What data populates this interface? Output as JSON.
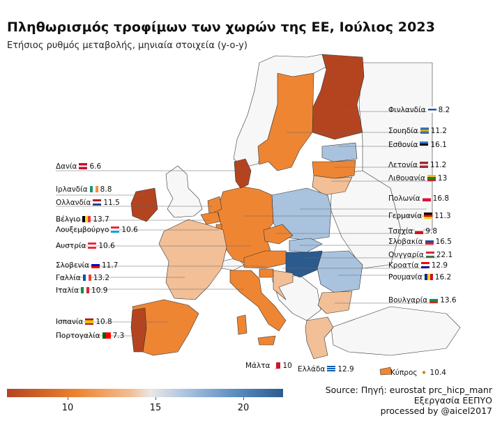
{
  "title": "Πληθωρισμός τροφίμων των χωρών της ΕΕ, Ιούλιος 2023",
  "subtitle": "Ετήσιος ρυθμός μεταβολής, μηνιαία στοιχεία (y-o-y)",
  "colors": {
    "low": "#b4441f",
    "orange": "#ee8533",
    "peach": "#f2bf96",
    "mid": "#e9e7e5",
    "lightblue": "#a9c3de",
    "blue": "#5e8fc2",
    "high": "#2b5b8e",
    "nonEU": "#f7f7f7"
  },
  "countries": [
    {
      "name": "Φινλανδία",
      "flag": "finland-flag",
      "value": "8.2"
    },
    {
      "name": "Σουηδία",
      "flag": "sweden-flag",
      "value": "11.2"
    },
    {
      "name": "Εσθονία",
      "flag": "estonia-flag",
      "value": "16.1"
    },
    {
      "name": "Λετονία",
      "flag": "latvia-flag",
      "value": "11.2"
    },
    {
      "name": "Λιθουανία",
      "flag": "lithuania-flag",
      "value": "13"
    },
    {
      "name": "Πολωνία",
      "flag": "poland-flag",
      "value": "16.8"
    },
    {
      "name": "Γερμανία",
      "flag": "germany-flag",
      "value": "11.3"
    },
    {
      "name": "Τσεχία",
      "flag": "czechia-flag",
      "value": "9.8"
    },
    {
      "name": "Σλοβακία",
      "flag": "slovakia-flag",
      "value": "16.5"
    },
    {
      "name": "Ουγγαρία",
      "flag": "hungary-flag",
      "value": "22.1"
    },
    {
      "name": "Κροατία",
      "flag": "croatia-flag",
      "value": "12.9"
    },
    {
      "name": "Ρουμανία",
      "flag": "romania-flag",
      "value": "16.2"
    },
    {
      "name": "Βουλγαρία",
      "flag": "bulgaria-flag",
      "value": "13.6"
    },
    {
      "name": "Κύπρος",
      "flag": "cyprus-flag",
      "value": "10.4"
    },
    {
      "name": "Ελλάδα",
      "flag": "greece-flag",
      "value": "12.9"
    },
    {
      "name": "Μάλτα",
      "flag": "malta-flag",
      "value": "10"
    },
    {
      "name": "Πορτογαλία",
      "flag": "portugal-flag",
      "value": "7.3"
    },
    {
      "name": "Ισπανία",
      "flag": "spain-flag",
      "value": "10.8"
    },
    {
      "name": "Ιταλία",
      "flag": "italy-flag",
      "value": "10.9"
    },
    {
      "name": "Γαλλία",
      "flag": "france-flag",
      "value": "13.2"
    },
    {
      "name": "Σλοβενία",
      "flag": "slovenia-flag",
      "value": "11.7"
    },
    {
      "name": "Αυστρία",
      "flag": "austria-flag",
      "value": "10.6"
    },
    {
      "name": "Λουξεμβούργο",
      "flag": "luxembourg-flag",
      "value": "10.6"
    },
    {
      "name": "Βέλγιο",
      "flag": "belgium-flag",
      "value": "13.7"
    },
    {
      "name": "Ολλανδία",
      "flag": "netherlands-flag",
      "value": "11.5"
    },
    {
      "name": "Ιρλανδία",
      "flag": "ireland-flag",
      "value": "8.8"
    },
    {
      "name": "Δανία",
      "flag": "denmark-flag",
      "value": "6.6"
    }
  ],
  "legend": {
    "ticks": [
      "10",
      "15",
      "20"
    ],
    "min": 5,
    "max": 23
  },
  "source": {
    "line1": "Source: Πηγή: eurostat prc_hicp_manr",
    "line2": "Εξεργασία ΕΕΠΥΟ",
    "line3": "processed by @aicel2017"
  }
}
